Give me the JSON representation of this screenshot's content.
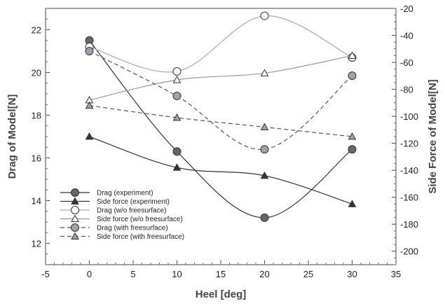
{
  "chart_data": {
    "type": "line",
    "x": [
      0,
      10,
      20,
      30
    ],
    "xlabel": "Heel [deg]",
    "ylabel_left": "Drag of Model[N]",
    "ylabel_right": "Side Force of Model[N]",
    "xlim": [
      -5,
      35
    ],
    "ylim_left": [
      11,
      23
    ],
    "ylim_right": [
      -210,
      -20
    ],
    "xticks": [
      -5,
      0,
      5,
      10,
      15,
      20,
      25,
      30,
      35
    ],
    "yticks_left": [
      12,
      14,
      16,
      18,
      20,
      22
    ],
    "yticks_right": [
      -200,
      -180,
      -160,
      -140,
      -120,
      -100,
      -80,
      -60,
      -40,
      -20
    ],
    "grid": false,
    "legend_position": "bottom-left",
    "series": [
      {
        "name": "Drag (experiment)",
        "axis": "left",
        "values": [
          21.5,
          16.3,
          13.2,
          16.4
        ],
        "color": "#333333",
        "dash": "solid",
        "marker": "circle",
        "fill": "#666666"
      },
      {
        "name": "Side force (experiment)",
        "axis": "right",
        "values": [
          -115,
          -138,
          -144,
          -165
        ],
        "color": "#333333",
        "dash": "solid",
        "marker": "triangle",
        "fill": "#333333"
      },
      {
        "name": "Drag (w/o freesurface)",
        "axis": "left",
        "values": [
          21.2,
          20.05,
          22.65,
          20.7
        ],
        "color": "#aaaaaa",
        "dash": "solid",
        "marker": "circle",
        "fill": "#ffffff"
      },
      {
        "name": "Side force (w/o freesurface)",
        "axis": "right",
        "values": [
          -88,
          -73,
          -68,
          -55
        ],
        "color": "#999999",
        "dash": "solid",
        "marker": "triangle",
        "fill": "#ffffff"
      },
      {
        "name": "Drag (with freesurface)",
        "axis": "left",
        "values": [
          21.0,
          18.9,
          16.4,
          19.85
        ],
        "color": "#555555",
        "dash": "dashed",
        "marker": "circle",
        "fill": "#a0a0a8"
      },
      {
        "name": "Side force (with freesurface)",
        "axis": "right",
        "values": [
          -92,
          -101,
          -108,
          -115
        ],
        "color": "#555555",
        "dash": "dashed",
        "marker": "triangle",
        "fill": "#a0a0a8"
      }
    ]
  }
}
